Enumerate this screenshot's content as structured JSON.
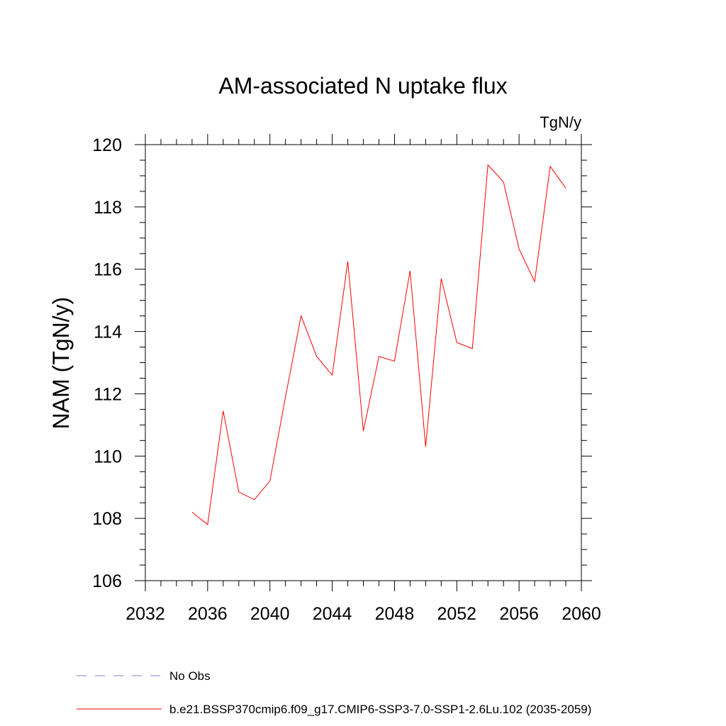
{
  "chart_data": {
    "type": "line",
    "title": "AM-associated N uptake flux",
    "units_label": "TgN/y",
    "ylabel": "NAM  (TgN/y)",
    "xlabel": "",
    "xlim": [
      2032,
      2060
    ],
    "ylim": [
      106,
      120
    ],
    "x_ticks": [
      2032,
      2036,
      2040,
      2044,
      2048,
      2052,
      2056,
      2060
    ],
    "y_ticks": [
      106,
      108,
      110,
      112,
      114,
      116,
      118,
      120
    ],
    "x_tick_labels": [
      "2032",
      "2036",
      "2040",
      "2044",
      "2048",
      "2052",
      "2056",
      "2060"
    ],
    "y_tick_labels": [
      "106",
      "108",
      "110",
      "112",
      "114",
      "116",
      "118",
      "120"
    ],
    "grid": false,
    "legend_position": "bottom",
    "series": [
      {
        "name": "b.e21.BSSP370cmip6.f09_g17.CMIP6-SSP3-7.0-SSP1-2.6Lu.102 (2035-2059)",
        "color": "#ff0000",
        "style": "solid",
        "x": [
          2035,
          2036,
          2037,
          2038,
          2039,
          2040,
          2041,
          2042,
          2043,
          2044,
          2045,
          2046,
          2047,
          2048,
          2049,
          2050,
          2051,
          2052,
          2053,
          2054,
          2055,
          2056,
          2057,
          2058,
          2059
        ],
        "values": [
          108.2,
          107.8,
          111.45,
          108.85,
          108.6,
          109.2,
          111.9,
          114.5,
          113.2,
          112.6,
          116.25,
          110.8,
          113.2,
          113.05,
          115.95,
          110.3,
          115.7,
          113.65,
          113.45,
          119.35,
          118.8,
          116.65,
          115.6,
          119.3,
          118.6
        ]
      }
    ],
    "legend": [
      {
        "label": "No Obs",
        "color": "#7f7fd0",
        "style": "dashed"
      },
      {
        "label": "b.e21.BSSP370cmip6.f09_g17.CMIP6-SSP3-7.0-SSP1-2.6Lu.102 (2035-2059)",
        "color": "#ff0000",
        "style": "solid"
      }
    ]
  }
}
